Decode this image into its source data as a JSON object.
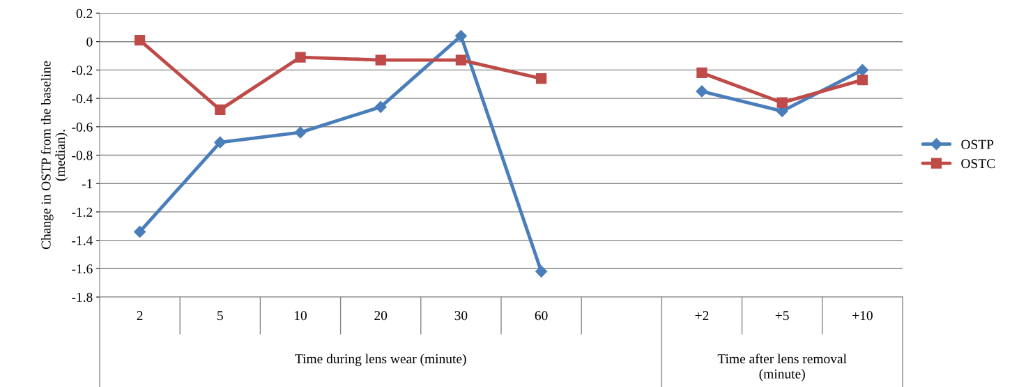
{
  "chart_data": {
    "type": "line",
    "ylabel": "Change in OSTP from the baseline\n(median).",
    "categories": [
      "2",
      "5",
      "10",
      "20",
      "30",
      "60",
      null,
      "+2",
      "+5",
      "+10"
    ],
    "series": [
      {
        "name": "OSTP",
        "color": "#4a7ebb",
        "marker": "diamond",
        "values": [
          -1.34,
          -0.71,
          -0.64,
          -0.46,
          0.04,
          -1.62,
          null,
          -0.35,
          -0.49,
          -0.2
        ]
      },
      {
        "name": "OSTC",
        "color": "#be4b48",
        "marker": "square",
        "values": [
          0.01,
          -0.48,
          -0.11,
          -0.13,
          -0.13,
          -0.26,
          null,
          -0.22,
          -0.43,
          -0.27
        ]
      }
    ],
    "annotations": [
      "Time during lens wear (minute)",
      "Time after lens removal\n(minute)"
    ],
    "ylim": [
      -1.8,
      0.2
    ],
    "yticks": [
      -1.8,
      -1.6,
      -1.4,
      -1.2,
      -1,
      -0.8,
      -0.6,
      -0.4,
      -0.2,
      0,
      0.2
    ],
    "grid": "y",
    "legend": "right",
    "line_style": "solid"
  }
}
